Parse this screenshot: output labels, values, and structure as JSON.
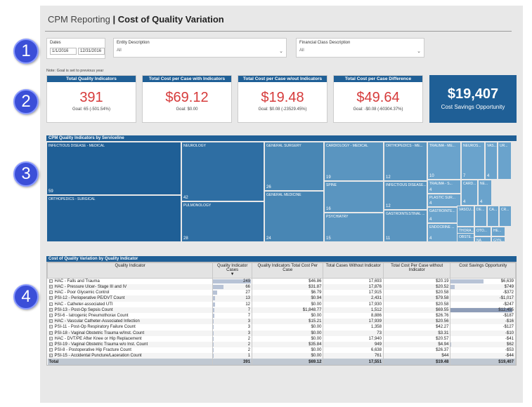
{
  "header": {
    "prefix": "CPM Reporting",
    "separator": " | ",
    "title": "Cost of Quality Variation"
  },
  "badges": [
    "1",
    "2",
    "3",
    "4"
  ],
  "filters": {
    "dates": {
      "label": "Dates",
      "start": "1/1/2016",
      "end": "12/31/2016"
    },
    "entity": {
      "label": "Entity Description",
      "value": "All"
    },
    "financial": {
      "label": "Financial Class Description",
      "value": "All"
    }
  },
  "note": "Note: Goal is set to previous year",
  "kpis": [
    {
      "title": "Total Quality Indicators",
      "value": "391",
      "goal": "Goal: 65 (-501.54%)"
    },
    {
      "title": "Total Cost per Case with Indicators",
      "value": "$69.12",
      "goal": "Goal: $0.00"
    },
    {
      "title": "Total Cost per Case w/out Indicators",
      "value": "$19.48",
      "goal": "Goal: $0.08 (-23529.45%)"
    },
    {
      "title": "Total Cost per Case Difference",
      "value": "$49.64",
      "goal": "Goal: -$0.08 (-60304.37%)"
    }
  ],
  "savings": {
    "value": "$19,407",
    "label": "Cost Savings Opportunity"
  },
  "treemap": {
    "title": "CPM Quality Indicators by Serviceline",
    "cells": [
      {
        "name": "INFECTIOUS DISEASE - MEDICAL",
        "count": "59",
        "color": "#1f5f96"
      },
      {
        "name": "ORTHOPEDICS - SURGICAL",
        "count": "",
        "color": "#1f5f96"
      },
      {
        "name": "NEUROLOGY",
        "count": "42",
        "color": "#2e6ea3"
      },
      {
        "name": "PULMONOLOGY",
        "count": "28",
        "color": "#2e6ea3"
      },
      {
        "name": "GENERAL SURGERY",
        "count": "26",
        "color": "#4886b4"
      },
      {
        "name": "GENERAL MEDICINE",
        "count": "24",
        "color": "#4886b4"
      },
      {
        "name": "CARDIOLOGY - MEDICAL",
        "count": "19",
        "color": "#5a95c0"
      },
      {
        "name": "SPINE",
        "count": "16",
        "color": "#5a95c0"
      },
      {
        "name": "PSYCHIATRY",
        "count": "15",
        "color": "#5a95c0"
      },
      {
        "name": "ORTHOPEDICS - ME...",
        "count": "12",
        "color": "#5a95c0"
      },
      {
        "name": "INFECTIOUS DISEASE...",
        "count": "12",
        "color": "#5a95c0"
      },
      {
        "name": "GASTROINTESTINAL ...",
        "count": "11",
        "color": "#5a95c0"
      },
      {
        "name": "TRAUMA - ME...",
        "count": "10",
        "color": "#6aa3cc"
      },
      {
        "name": "TRAUMA - S...",
        "count": "4",
        "color": "#6aa3cc"
      },
      {
        "name": "PLASTIC SUR...",
        "count": "4",
        "color": "#6aa3cc"
      },
      {
        "name": "GASTROINTE...",
        "count": "4",
        "color": "#6aa3cc"
      },
      {
        "name": "ENDOCRINE ...",
        "count": "4",
        "color": "#6aa3cc"
      },
      {
        "name": "NEUROS...",
        "count": "7",
        "color": "#6aa3cc"
      },
      {
        "name": "VAS...",
        "count": "4",
        "color": "#6aa3cc"
      },
      {
        "name": "UR...",
        "count": "",
        "color": "#6aa3cc"
      },
      {
        "name": "CARD...",
        "count": "4",
        "color": "#6aa3cc"
      },
      {
        "name": "NE...",
        "count": "4",
        "color": "#6aa3cc"
      },
      {
        "name": "VASCU...",
        "count": "",
        "color": "#6aa3cc"
      },
      {
        "name": "DE...",
        "count": "",
        "color": "#6aa3cc"
      },
      {
        "name": "CA...",
        "count": "",
        "color": "#6aa3cc"
      },
      {
        "name": "CR...",
        "count": "",
        "color": "#6aa3cc"
      },
      {
        "name": "THORA...",
        "count": "",
        "color": "#6aa3cc"
      },
      {
        "name": "OTO...",
        "count": "",
        "color": "#6aa3cc"
      },
      {
        "name": "HE...",
        "count": "",
        "color": "#6aa3cc"
      },
      {
        "name": "OBSTE...",
        "count": "",
        "color": "#6aa3cc"
      },
      {
        "name": "NA",
        "count": "",
        "color": "#6aa3cc"
      },
      {
        "name": "GYN...",
        "count": "",
        "color": "#6aa3cc"
      }
    ]
  },
  "table": {
    "title": "Cost of Quality Variation by Quality Indicator",
    "columns": [
      "Quality Indicator",
      "Quality Indicator Cases",
      "Quality Indicators Total Cost Per Case",
      "Total Cases Without Indicator",
      "Total Cost Per Case without Indicator",
      "Cost Savings Opportunity"
    ],
    "rows": [
      {
        "qi": "HAC - Falls and Trauma",
        "cases": "249",
        "cost": "$46.86",
        "without": "17,693",
        "cost_wo": "$20.19",
        "savings": "$6,639",
        "cases_frac": 1.0,
        "sav_frac": 0.53
      },
      {
        "qi": "HAC - Pressure Ulcer- Stage III and IV",
        "cases": "66",
        "cost": "$31.87",
        "without": "17,876",
        "cost_wo": "$20.52",
        "savings": "$749",
        "cases_frac": 0.27,
        "sav_frac": 0.06
      },
      {
        "qi": "HAC - Poor Glycemic Control",
        "cases": "27",
        "cost": "$6.79",
        "without": "17,915",
        "cost_wo": "$20.58",
        "savings": "-$372",
        "cases_frac": 0.11,
        "sav_frac": 0
      },
      {
        "qi": "PSI-12 - Perioperative PE/DVT Count",
        "cases": "13",
        "cost": "$0.94",
        "without": "2,431",
        "cost_wo": "$79.58",
        "savings": "-$1,017",
        "cases_frac": 0.05,
        "sav_frac": 0
      },
      {
        "qi": "HAC - Catheter-associated UTI",
        "cases": "12",
        "cost": "$0.00",
        "without": "17,930",
        "cost_wo": "$20.58",
        "savings": "-$247",
        "cases_frac": 0.05,
        "sav_frac": 0
      },
      {
        "qi": "PSI-13 - Post-Op Sepsis Count",
        "cases": "7",
        "cost": "$1,848.77",
        "without": "1,512",
        "cost_wo": "$69.55",
        "savings": "$12,455",
        "cases_frac": 0.03,
        "sav_frac": 1.0
      },
      {
        "qi": "PSI-6 - Iatrogenic Pneumothorax Count",
        "cases": "7",
        "cost": "$0.00",
        "without": "8,886",
        "cost_wo": "$26.76",
        "savings": "-$187",
        "cases_frac": 0.03,
        "sav_frac": 0
      },
      {
        "qi": "HAC - Vascular Catheter-Associated Infection",
        "cases": "3",
        "cost": "$15.21",
        "without": "17,939",
        "cost_wo": "$20.56",
        "savings": "-$16",
        "cases_frac": 0.01,
        "sav_frac": 0
      },
      {
        "qi": "PSI-11 - Post-Op Respiratory Failure Count",
        "cases": "3",
        "cost": "$0.00",
        "without": "1,358",
        "cost_wo": "$42.27",
        "savings": "-$127",
        "cases_frac": 0.01,
        "sav_frac": 0
      },
      {
        "qi": "PSI-18 - Vaginal Obstetric Trauma w/Inst. Count",
        "cases": "3",
        "cost": "$0.00",
        "without": "73",
        "cost_wo": "$3.31",
        "savings": "-$10",
        "cases_frac": 0.01,
        "sav_frac": 0
      },
      {
        "qi": "HAC - DVT/PE After Knee or Hip Replacement",
        "cases": "2",
        "cost": "$0.00",
        "without": "17,940",
        "cost_wo": "$20.57",
        "savings": "-$41",
        "cases_frac": 0.01,
        "sav_frac": 0
      },
      {
        "qi": "PSI-19 - Vaginal Obstetric Trauma w/o Inst. Count",
        "cases": "2",
        "cost": "$35.84",
        "without": "949",
        "cost_wo": "$4.94",
        "savings": "$62",
        "cases_frac": 0.01,
        "sav_frac": 0.005
      },
      {
        "qi": "PSI-8 - Postoperative Hip Fracture Count",
        "cases": "2",
        "cost": "$0.00",
        "without": "6,638",
        "cost_wo": "$26.37",
        "savings": "-$53",
        "cases_frac": 0.01,
        "sav_frac": 0
      },
      {
        "qi": "PSI-15 - Accidental Puncture/Laceration Count",
        "cases": "1",
        "cost": "$0.00",
        "without": "761",
        "cost_wo": "$44",
        "savings": "-$44",
        "cases_frac": 0.004,
        "sav_frac": 0
      }
    ],
    "total": {
      "qi": "Total",
      "cases": "391",
      "cost": "$69.12",
      "without": "17,551",
      "cost_wo": "$19.48",
      "savings": "$19,407"
    }
  }
}
